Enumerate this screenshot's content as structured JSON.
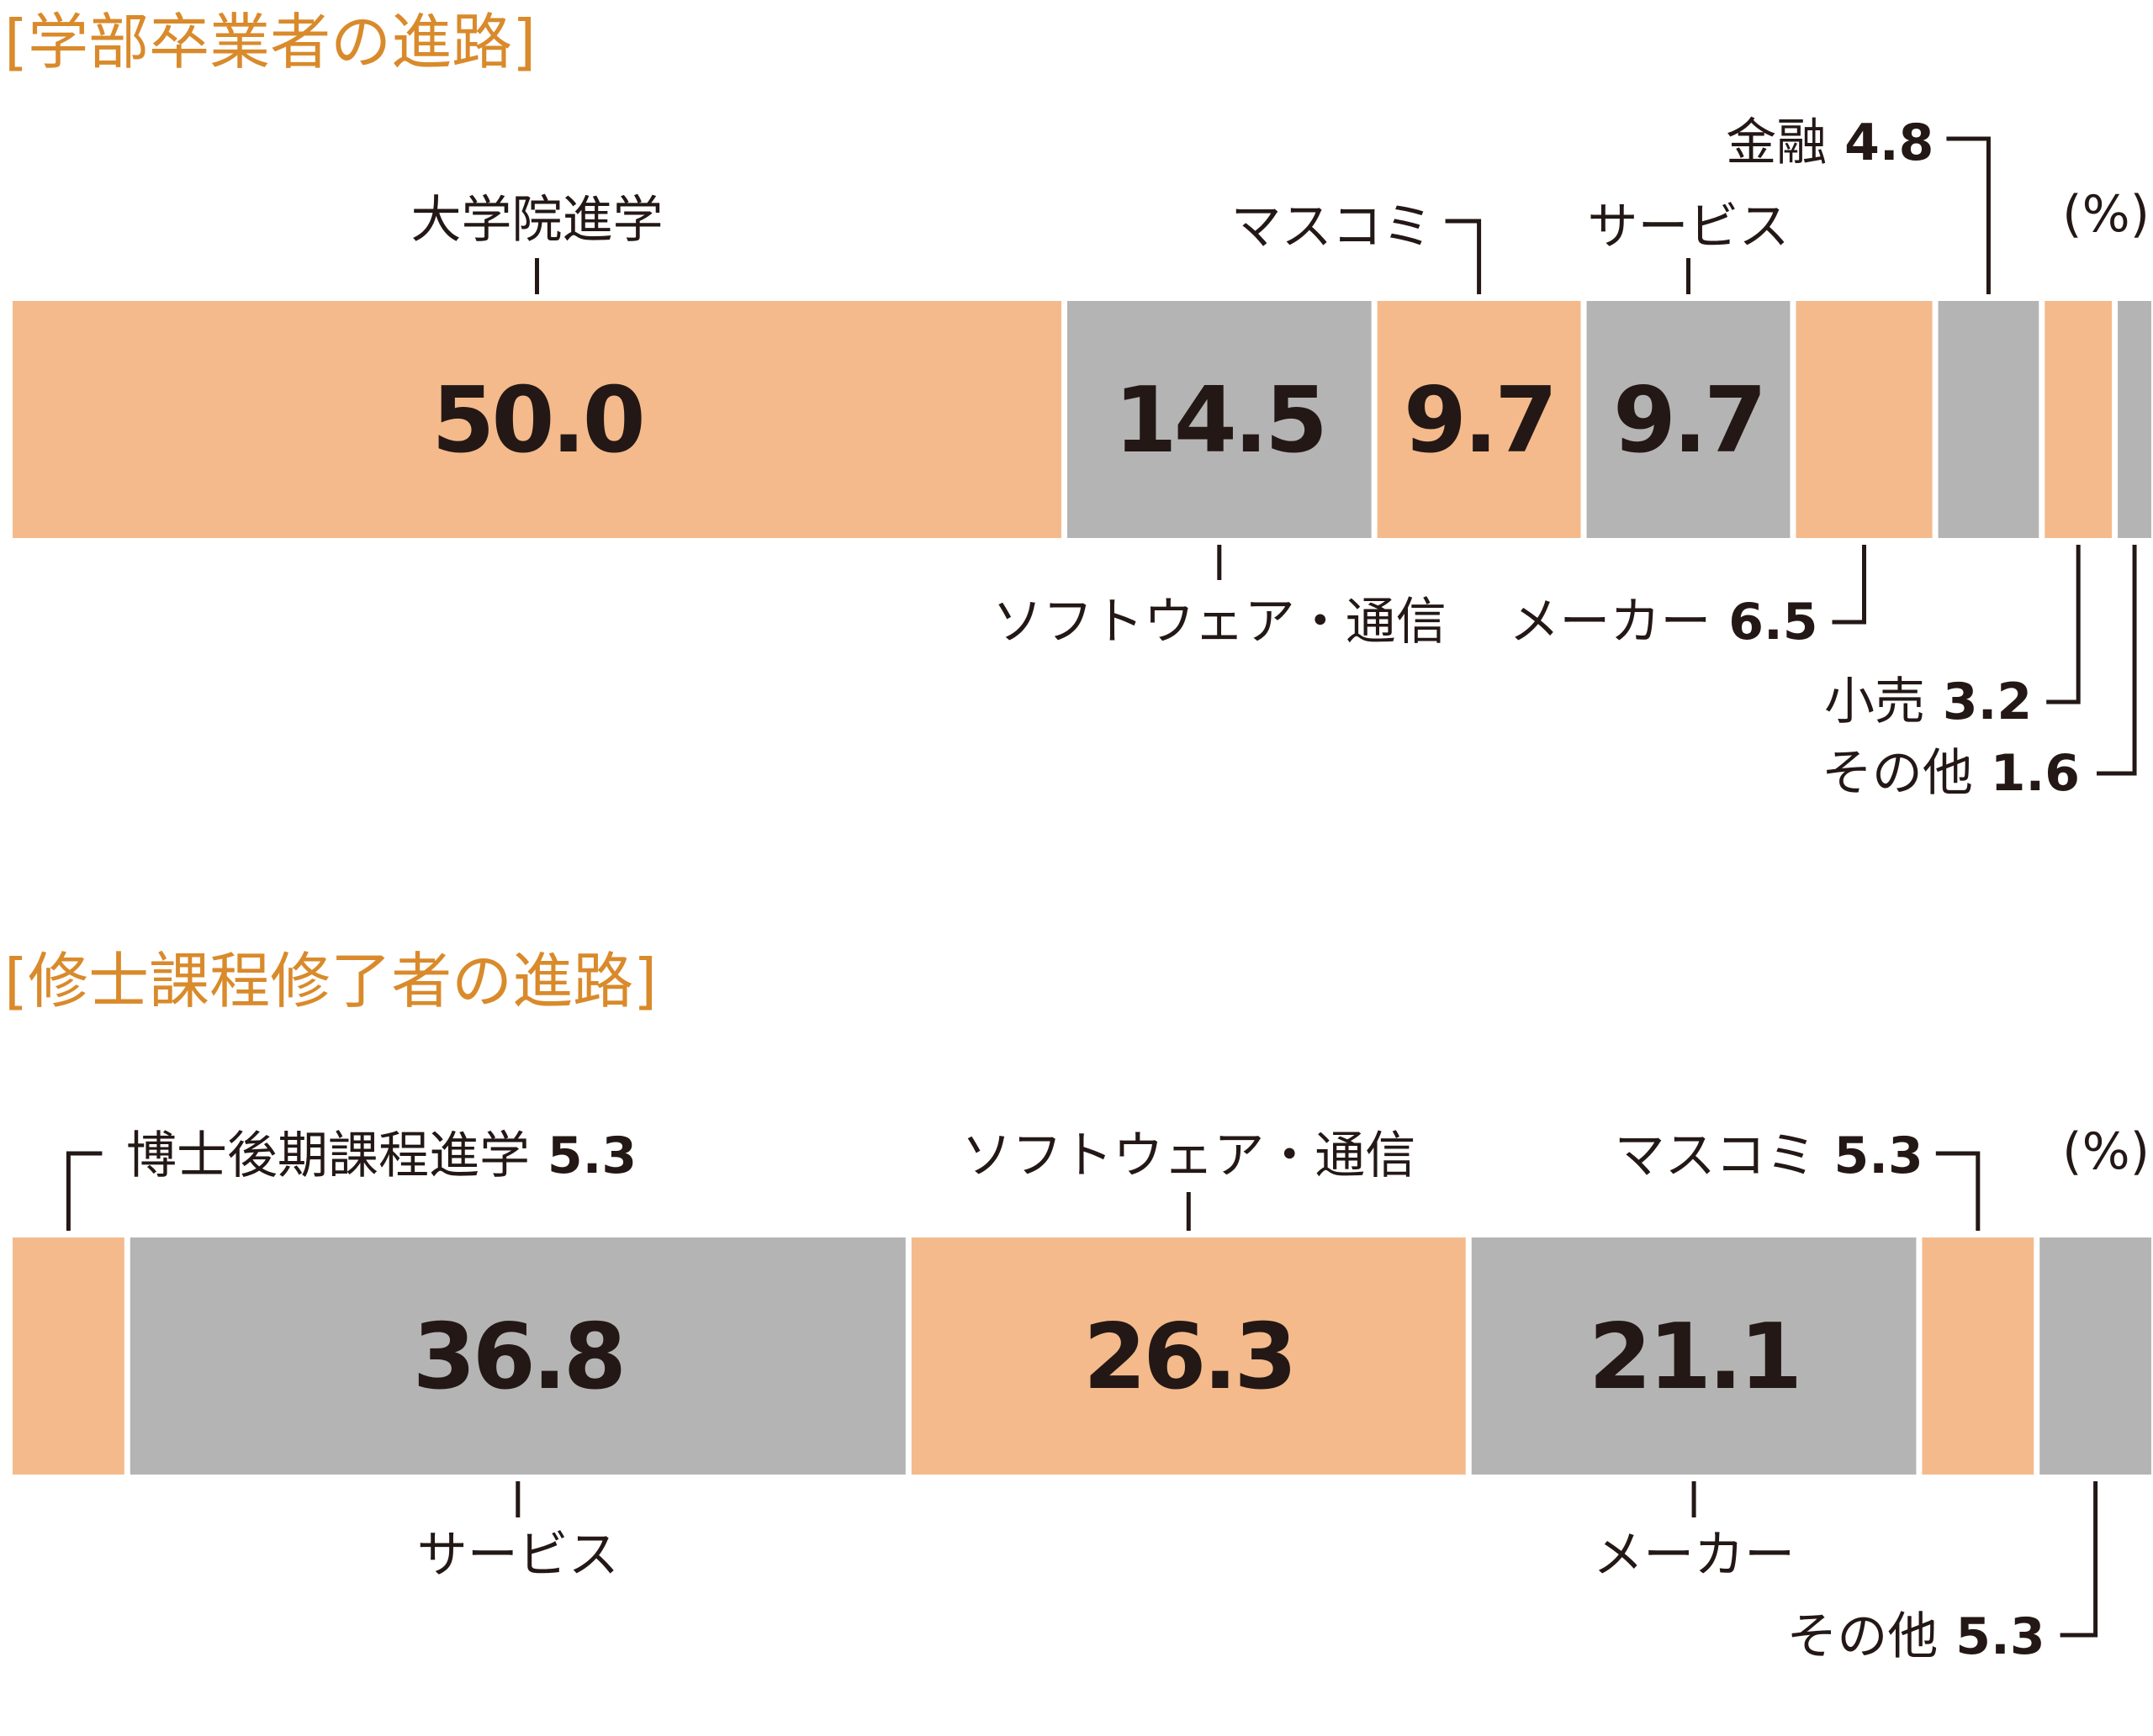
{
  "chart_data": [
    {
      "type": "bar",
      "title": "[学部卒業者の進路]",
      "unit": "(%)",
      "segments": [
        {
          "label": "大学院進学",
          "value": 50.0,
          "value_text": "50.0",
          "color": "#F4BA8B"
        },
        {
          "label": "ソフトウェア・通信",
          "value": 14.5,
          "value_text": "14.5",
          "color": "#B4B4B4"
        },
        {
          "label": "マスコミ",
          "value": 9.7,
          "value_text": "9.7",
          "color": "#F4BA8B"
        },
        {
          "label": "サービス",
          "value": 9.7,
          "value_text": "9.7",
          "color": "#B4B4B4"
        },
        {
          "label": "メーカー",
          "value": 6.5,
          "value_text": "6.5",
          "color": "#F4BA8B"
        },
        {
          "label": "金融",
          "value": 4.8,
          "value_text": "4.8",
          "color": "#B4B4B4"
        },
        {
          "label": "小売",
          "value": 3.2,
          "value_text": "3.2",
          "color": "#F4BA8B"
        },
        {
          "label": "その他",
          "value": 1.6,
          "value_text": "1.6",
          "color": "#B4B4B4"
        }
      ]
    },
    {
      "type": "bar",
      "title": "[修士課程修了者の進路]",
      "unit": "(%)",
      "segments": [
        {
          "label": "博士後期課程進学",
          "value": 5.3,
          "value_text": "5.3",
          "color": "#F4BA8B"
        },
        {
          "label": "サービス",
          "value": 36.8,
          "value_text": "36.8",
          "color": "#B4B4B4"
        },
        {
          "label": "ソフトウェア・通信",
          "value": 26.3,
          "value_text": "26.3",
          "color": "#F4BA8B"
        },
        {
          "label": "メーカー",
          "value": 21.1,
          "value_text": "21.1",
          "color": "#B4B4B4"
        },
        {
          "label": "マスコミ",
          "value": 5.3,
          "value_text": "5.3",
          "color": "#F4BA8B"
        },
        {
          "label": "その他",
          "value": 5.3,
          "value_text": "5.3",
          "color": "#B4B4B4"
        }
      ]
    }
  ],
  "colors": {
    "title": "#D98A2B",
    "orange": "#F4BA8B",
    "gray": "#B4B4B4",
    "text": "#231815"
  }
}
